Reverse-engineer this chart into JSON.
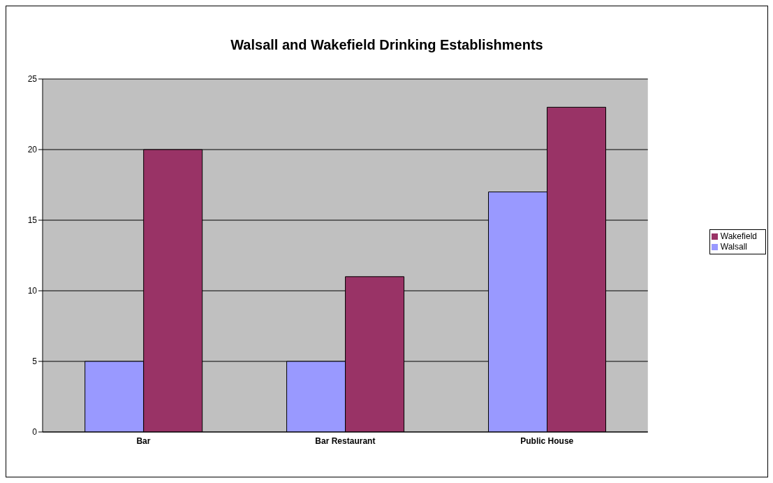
{
  "chart_data": {
    "type": "bar",
    "title": "Walsall and Wakefield Drinking Establishments",
    "categories": [
      "Bar",
      "Bar Restaurant",
      "Public House"
    ],
    "series": [
      {
        "name": "Walsall",
        "color": "#9999ff",
        "values": [
          5,
          5,
          17
        ]
      },
      {
        "name": "Wakefield",
        "color": "#993366",
        "values": [
          20,
          11,
          23
        ]
      }
    ],
    "ylim": [
      0,
      25
    ],
    "yticks": [
      0,
      5,
      10,
      15,
      20,
      25
    ],
    "grid": "y",
    "legend": "right"
  }
}
